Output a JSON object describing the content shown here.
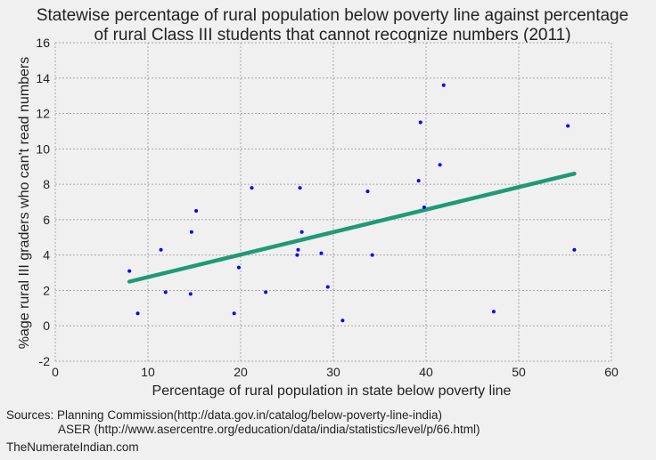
{
  "chart_data": {
    "type": "scatter",
    "title": [
      "Statewise percentage of rural population below poverty line against percentage",
      "of rural Class III students that cannot recognize numbers (2011)"
    ],
    "xlabel": "Percentage of rural population in state below poverty line",
    "ylabel": "%age rural III graders who can't read numbers",
    "xlim": [
      0,
      60
    ],
    "ylim": [
      -2,
      16
    ],
    "xticks": [
      0,
      10,
      20,
      30,
      40,
      50,
      60
    ],
    "yticks": [
      -2,
      0,
      2,
      4,
      6,
      8,
      10,
      12,
      14,
      16
    ],
    "grid": true,
    "point_color": "#0000ff",
    "fit_color": "#1f9a74",
    "points": [
      {
        "x": 8.0,
        "y": 3.1
      },
      {
        "x": 8.9,
        "y": 0.7
      },
      {
        "x": 11.4,
        "y": 4.3
      },
      {
        "x": 11.9,
        "y": 1.9
      },
      {
        "x": 14.6,
        "y": 1.8
      },
      {
        "x": 14.7,
        "y": 5.3
      },
      {
        "x": 15.2,
        "y": 6.5
      },
      {
        "x": 19.3,
        "y": 0.7
      },
      {
        "x": 19.8,
        "y": 3.3
      },
      {
        "x": 21.2,
        "y": 7.8
      },
      {
        "x": 22.7,
        "y": 1.9
      },
      {
        "x": 26.1,
        "y": 4.0
      },
      {
        "x": 26.2,
        "y": 4.3
      },
      {
        "x": 26.4,
        "y": 7.8
      },
      {
        "x": 26.6,
        "y": 5.3
      },
      {
        "x": 28.7,
        "y": 4.1
      },
      {
        "x": 29.4,
        "y": 2.2
      },
      {
        "x": 31.0,
        "y": 0.3
      },
      {
        "x": 33.7,
        "y": 7.6
      },
      {
        "x": 34.2,
        "y": 4.0
      },
      {
        "x": 39.2,
        "y": 8.2
      },
      {
        "x": 39.4,
        "y": 11.5
      },
      {
        "x": 39.8,
        "y": 6.7
      },
      {
        "x": 41.5,
        "y": 9.1
      },
      {
        "x": 41.9,
        "y": 13.6
      },
      {
        "x": 47.3,
        "y": 0.8
      },
      {
        "x": 55.3,
        "y": 11.3
      },
      {
        "x": 56.0,
        "y": 4.3
      }
    ],
    "fit_line": {
      "x": [
        8.0,
        56.0
      ],
      "y": [
        2.5,
        8.6
      ]
    }
  },
  "sources": {
    "line1": "Sources: Planning Commission(http://data.gov.in/catalog/below-poverty-line-india)",
    "line2": "ASER (http://www.asercentre.org/education/data/india/statistics/level/p/66.html)",
    "credit": "TheNumerateIndian.com"
  }
}
